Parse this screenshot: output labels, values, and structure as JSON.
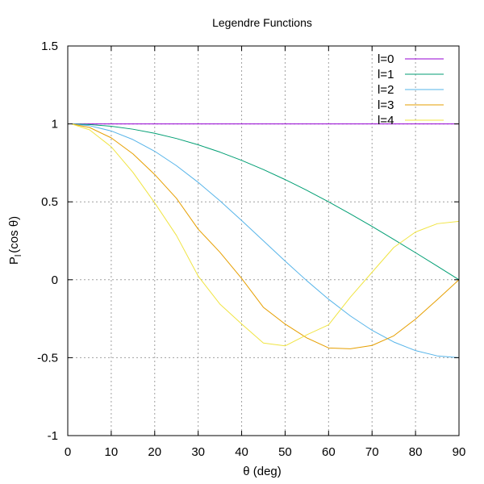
{
  "chart_data": {
    "type": "line",
    "title": "Legendre Functions",
    "xlabel": "θ (deg)",
    "ylabel_main": "P",
    "ylabel_sub": "l",
    "ylabel_tail": "(cos θ)",
    "xlim": [
      0,
      90
    ],
    "ylim": [
      -1,
      1.5
    ],
    "x_ticks": [
      0,
      10,
      20,
      30,
      40,
      50,
      60,
      70,
      80,
      90
    ],
    "x_tick_labels": [
      "0",
      "10",
      "20",
      "30",
      "40",
      "50",
      "60",
      "70",
      "80",
      "90"
    ],
    "y_ticks": [
      -1,
      -0.5,
      0,
      0.5,
      1,
      1.5
    ],
    "y_tick_labels": [
      "-1",
      "-0.5",
      "0",
      "0.5",
      "1",
      "1.5"
    ],
    "grid": true,
    "legend_position": "top-right",
    "x": [
      1,
      5,
      10,
      15,
      20,
      25,
      30,
      35,
      40,
      45,
      50,
      55,
      60,
      65,
      70,
      75,
      80,
      85,
      90
    ],
    "series": [
      {
        "name": "l=0",
        "color": "#9400d3",
        "values": [
          1,
          1,
          1,
          1,
          1,
          1,
          1,
          1,
          1,
          1,
          1,
          1,
          1,
          1,
          1,
          1,
          1,
          1,
          1
        ]
      },
      {
        "name": "l=1",
        "color": "#009e73",
        "values": [
          0.9998,
          0.9962,
          0.9848,
          0.9659,
          0.9397,
          0.9063,
          0.866,
          0.8192,
          0.766,
          0.7071,
          0.6428,
          0.5736,
          0.5,
          0.4226,
          0.342,
          0.2588,
          0.1736,
          0.0872,
          0.0
        ]
      },
      {
        "name": "l=2",
        "color": "#56b4e9",
        "values": [
          0.9995,
          0.9886,
          0.9548,
          0.8995,
          0.8245,
          0.7321,
          0.625,
          0.5066,
          0.3802,
          0.25,
          0.1198,
          -0.0065,
          -0.125,
          -0.2321,
          -0.3245,
          -0.3995,
          -0.4548,
          -0.4886,
          -0.5
        ]
      },
      {
        "name": "l=3",
        "color": "#e69f00",
        "values": [
          0.9991,
          0.9773,
          0.9106,
          0.8078,
          0.6753,
          0.5226,
          0.3248,
          0.1765,
          0.0086,
          -0.1768,
          -0.2843,
          -0.3734,
          -0.4375,
          -0.4427,
          -0.4216,
          -0.3596,
          -0.2526,
          -0.1276,
          0.0
        ]
      },
      {
        "name": "l=4",
        "color": "#f0e442",
        "values": [
          0.9985,
          0.9623,
          0.8532,
          0.6892,
          0.4936,
          0.2846,
          0.0234,
          -0.1561,
          -0.2836,
          -0.4062,
          -0.4242,
          -0.3532,
          -0.2891,
          -0.1121,
          0.0481,
          0.2073,
          0.3064,
          0.3597,
          0.375
        ]
      }
    ]
  }
}
